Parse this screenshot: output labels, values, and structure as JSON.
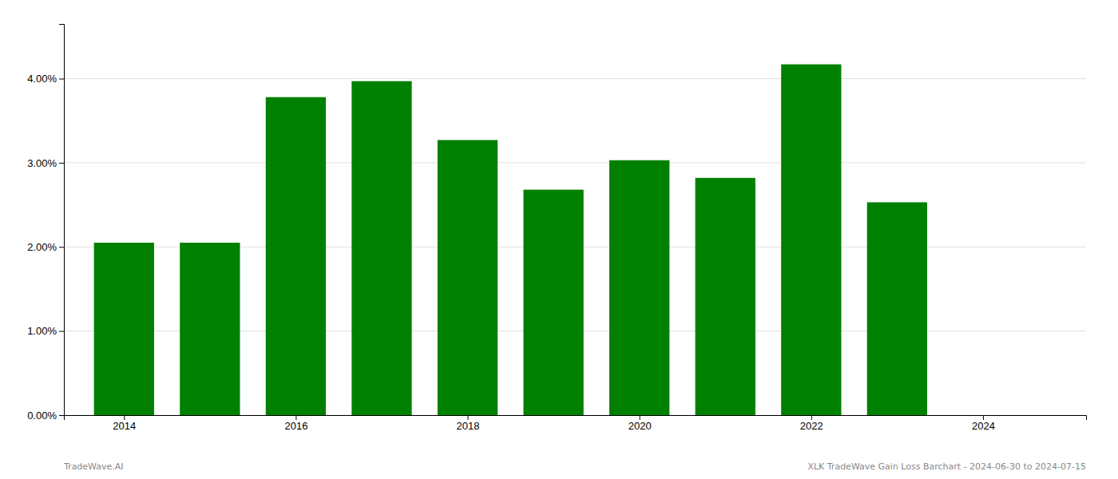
{
  "chart_data": {
    "type": "bar",
    "x": [
      2014,
      2015,
      2016,
      2017,
      2018,
      2019,
      2020,
      2021,
      2022,
      2023
    ],
    "values": [
      0.0205,
      0.0205,
      0.0378,
      0.0397,
      0.0327,
      0.0268,
      0.0303,
      0.0282,
      0.0417,
      0.0253
    ],
    "color": "#008000",
    "xlim": [
      2013.3,
      2025.2
    ],
    "xticks": [
      2014,
      2016,
      2018,
      2020,
      2022,
      2024
    ],
    "ylim": [
      0,
      0.0465
    ],
    "yticks": [
      {
        "value": 0.0,
        "label": "0.00%"
      },
      {
        "value": 0.01,
        "label": "1.00%"
      },
      {
        "value": 0.02,
        "label": "2.00%"
      },
      {
        "value": 0.03,
        "label": "3.00%"
      },
      {
        "value": 0.04,
        "label": "4.00%"
      }
    ],
    "grid": true,
    "annotations": [
      "TradeWave.AI",
      "XLK TradeWave Gain Loss Barchart - 2024-06-30 to 2024-07-15"
    ]
  }
}
